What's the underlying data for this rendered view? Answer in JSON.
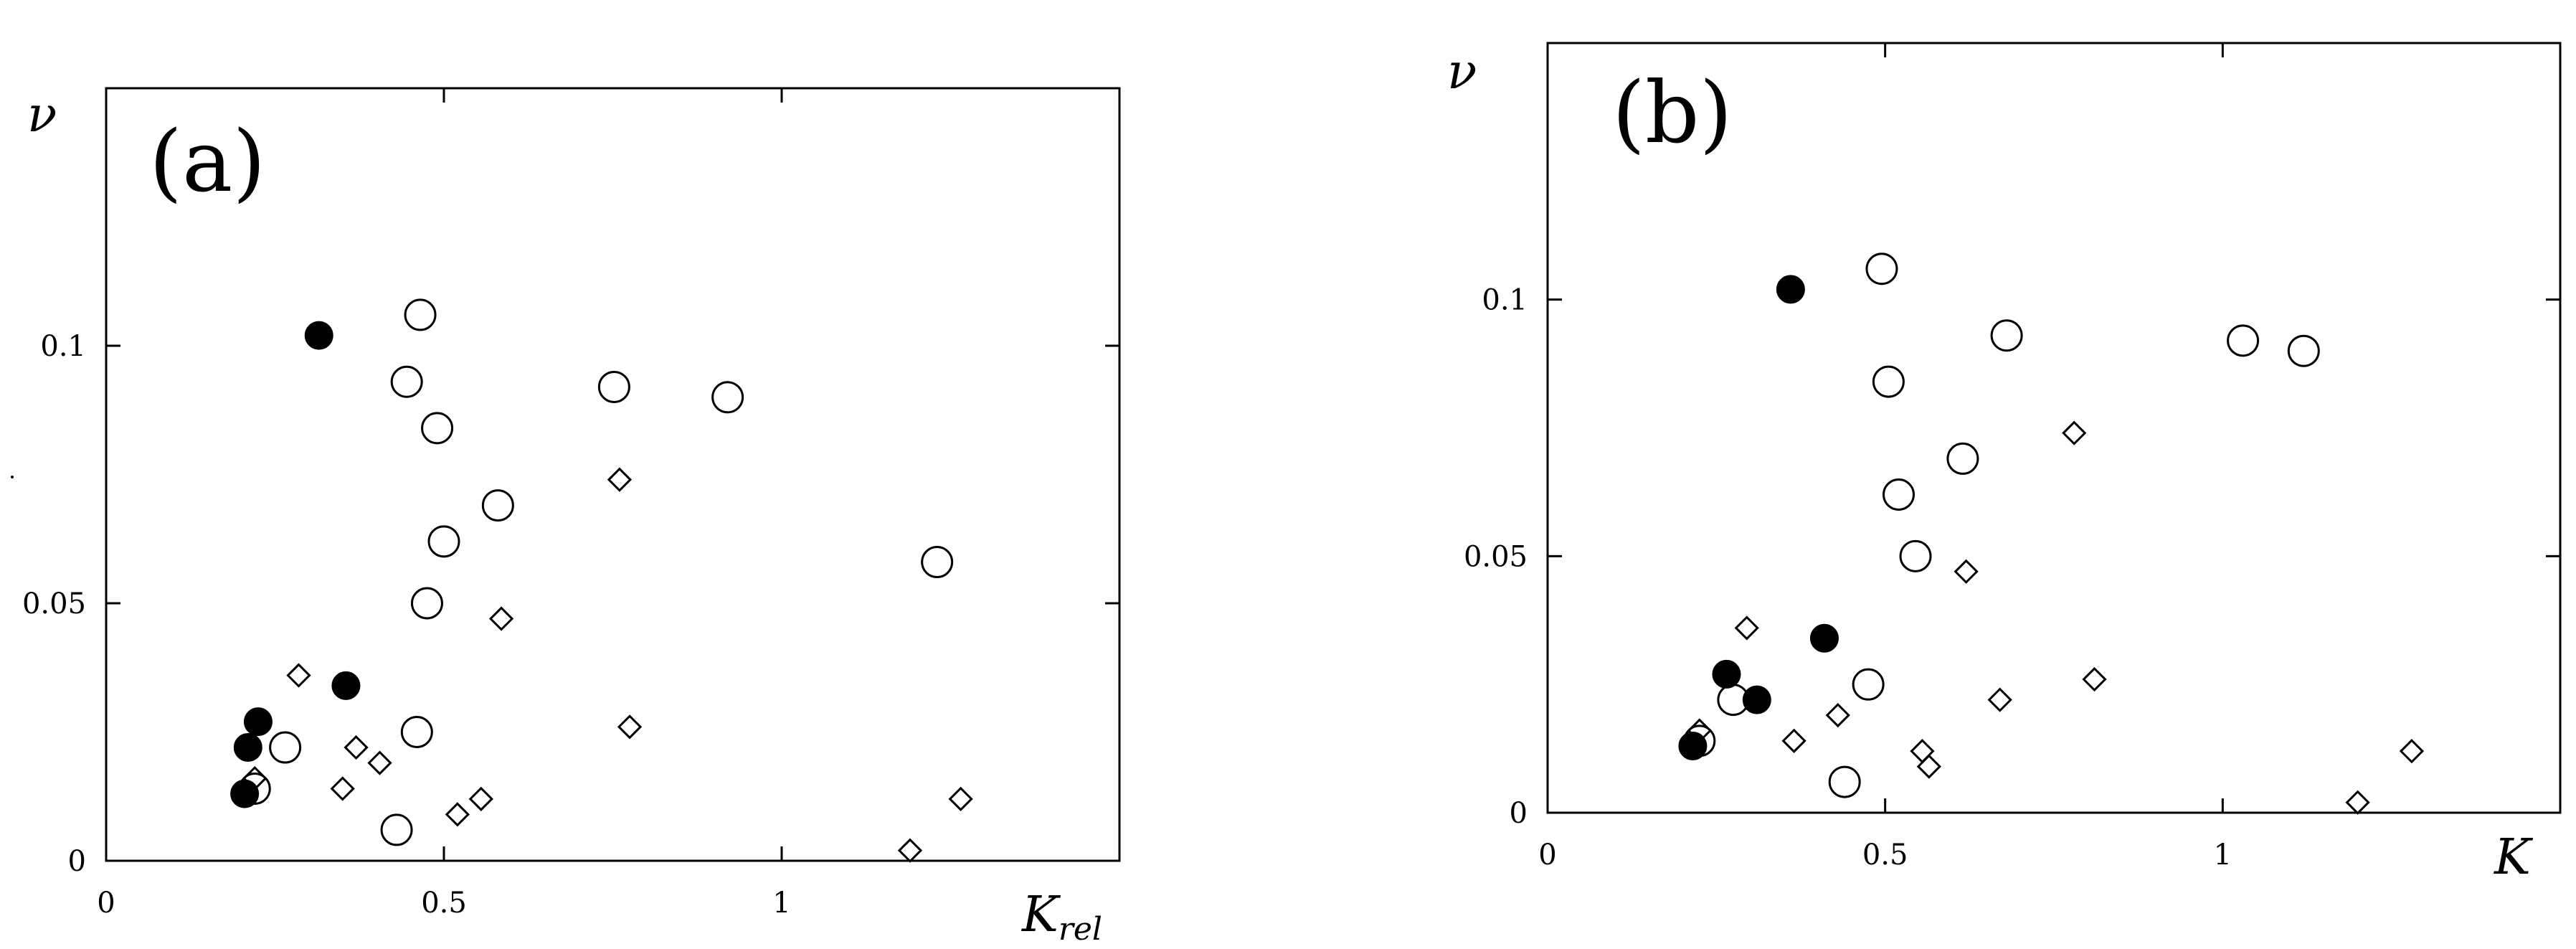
{
  "chart_data": [
    {
      "type": "scatter",
      "panel_label": "(a)",
      "xlabel": "K",
      "xlabel_sub": "rel",
      "ylabel": "ν",
      "xlim": [
        0,
        1.5
      ],
      "ylim": [
        0,
        0.15
      ],
      "xticks": [
        "0",
        "0.5",
        "1"
      ],
      "yticks": [
        "0",
        "0.05",
        "0.1"
      ],
      "grid": false,
      "series": [
        {
          "marker": "open-circle",
          "points": [
            [
              0.465,
              0.106
            ],
            [
              0.445,
              0.093
            ],
            [
              0.49,
              0.084
            ],
            [
              0.752,
              0.092
            ],
            [
              0.92,
              0.09
            ],
            [
              0.58,
              0.069
            ],
            [
              0.5,
              0.062
            ],
            [
              0.475,
              0.05
            ],
            [
              1.23,
              0.058
            ],
            [
              0.46,
              0.025
            ],
            [
              0.265,
              0.022
            ],
            [
              0.22,
              0.014
            ],
            [
              0.43,
              0.006
            ]
          ]
        },
        {
          "marker": "filled-circle",
          "points": [
            [
              0.315,
              0.102
            ],
            [
              0.355,
              0.034
            ],
            [
              0.225,
              0.027
            ],
            [
              0.21,
              0.022
            ],
            [
              0.205,
              0.013
            ]
          ]
        },
        {
          "marker": "open-diamond",
          "points": [
            [
              0.76,
              0.074
            ],
            [
              0.585,
              0.047
            ],
            [
              0.285,
              0.036
            ],
            [
              0.775,
              0.026
            ],
            [
              0.37,
              0.022
            ],
            [
              0.405,
              0.019
            ],
            [
              0.22,
              0.016
            ],
            [
              0.35,
              0.014
            ],
            [
              0.555,
              0.012
            ],
            [
              0.52,
              0.009
            ],
            [
              1.265,
              0.012
            ],
            [
              1.19,
              0.002
            ]
          ]
        }
      ]
    },
    {
      "type": "scatter",
      "panel_label": "(b)",
      "xlabel": "K",
      "xlabel_sub": "",
      "ylabel": "ν",
      "xlim": [
        0,
        1.5
      ],
      "ylim": [
        0,
        0.15
      ],
      "xticks": [
        "0",
        "0.5",
        "1"
      ],
      "yticks": [
        "0",
        "0.05",
        "0.1"
      ],
      "grid": false,
      "series": [
        {
          "marker": "open-circle",
          "points": [
            [
              0.495,
              0.106
            ],
            [
              0.505,
              0.084
            ],
            [
              0.68,
              0.093
            ],
            [
              1.03,
              0.092
            ],
            [
              1.12,
              0.09
            ],
            [
              0.615,
              0.069
            ],
            [
              0.52,
              0.062
            ],
            [
              0.545,
              0.05
            ],
            [
              0.475,
              0.025
            ],
            [
              0.275,
              0.022
            ],
            [
              0.225,
              0.014
            ],
            [
              0.44,
              0.006
            ]
          ]
        },
        {
          "marker": "filled-circle",
          "points": [
            [
              0.36,
              0.102
            ],
            [
              0.41,
              0.034
            ],
            [
              0.265,
              0.027
            ],
            [
              0.31,
              0.022
            ],
            [
              0.215,
              0.013
            ]
          ]
        },
        {
          "marker": "open-diamond",
          "points": [
            [
              0.78,
              0.074
            ],
            [
              0.62,
              0.047
            ],
            [
              0.295,
              0.036
            ],
            [
              0.81,
              0.026
            ],
            [
              0.67,
              0.022
            ],
            [
              0.43,
              0.019
            ],
            [
              0.225,
              0.016
            ],
            [
              0.365,
              0.014
            ],
            [
              0.555,
              0.012
            ],
            [
              0.565,
              0.009
            ],
            [
              1.28,
              0.012
            ],
            [
              1.2,
              0.002
            ]
          ]
        }
      ]
    }
  ]
}
